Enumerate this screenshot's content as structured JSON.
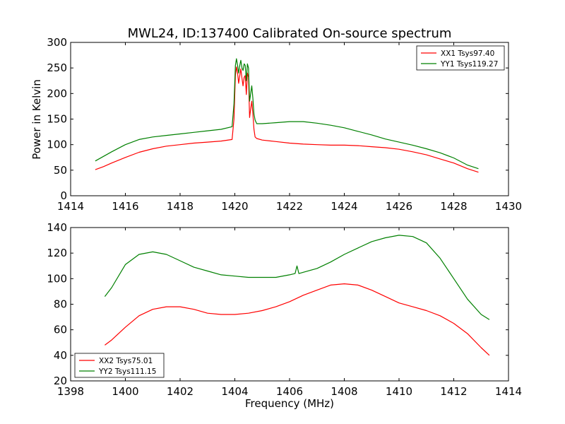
{
  "chart_data": [
    {
      "type": "line",
      "title": "MWL24, ID:137400 Calibrated On-source spectrum",
      "xlabel": "",
      "ylabel": "Power in Kelvin",
      "xlim": [
        1414,
        1430
      ],
      "ylim": [
        0,
        300
      ],
      "xticks": [
        1414,
        1416,
        1418,
        1420,
        1422,
        1424,
        1426,
        1428,
        1430
      ],
      "yticks": [
        0,
        50,
        100,
        150,
        200,
        250,
        300
      ],
      "grid": false,
      "legend_position": "top-right",
      "series": [
        {
          "name": "XX1 Tsys97.40",
          "color": "#ff0000",
          "x": [
            1414.9,
            1415.2,
            1415.5,
            1416.0,
            1416.5,
            1417.0,
            1417.5,
            1418.0,
            1418.5,
            1419.0,
            1419.5,
            1419.9,
            1419.97,
            1420.02,
            1420.06,
            1420.1,
            1420.14,
            1420.18,
            1420.22,
            1420.26,
            1420.3,
            1420.34,
            1420.38,
            1420.42,
            1420.46,
            1420.5,
            1420.54,
            1420.58,
            1420.62,
            1420.66,
            1420.7,
            1420.74,
            1420.8,
            1421.0,
            1421.5,
            1422.0,
            1422.5,
            1423.0,
            1423.5,
            1424.0,
            1424.5,
            1425.0,
            1425.5,
            1426.0,
            1426.5,
            1427.0,
            1427.5,
            1428.0,
            1428.5,
            1428.9
          ],
          "y": [
            51,
            57,
            64,
            75,
            85,
            92,
            97,
            100,
            103,
            105,
            107,
            110,
            150,
            235,
            252,
            240,
            220,
            235,
            248,
            230,
            215,
            232,
            235,
            198,
            240,
            232,
            153,
            170,
            185,
            160,
            130,
            115,
            112,
            109,
            106,
            103,
            101,
            100,
            99,
            99,
            98,
            96,
            94,
            91,
            86,
            80,
            72,
            64,
            53,
            46
          ]
        },
        {
          "name": "YY1 Tsys119.27",
          "color": "#008000",
          "x": [
            1414.9,
            1415.2,
            1415.5,
            1416.0,
            1416.5,
            1417.0,
            1417.5,
            1418.0,
            1418.5,
            1419.0,
            1419.5,
            1419.9,
            1419.97,
            1420.02,
            1420.06,
            1420.1,
            1420.14,
            1420.18,
            1420.22,
            1420.26,
            1420.3,
            1420.34,
            1420.38,
            1420.42,
            1420.46,
            1420.5,
            1420.54,
            1420.58,
            1420.62,
            1420.66,
            1420.7,
            1420.74,
            1420.8,
            1421.0,
            1421.5,
            1422.0,
            1422.5,
            1423.0,
            1423.5,
            1424.0,
            1424.5,
            1425.0,
            1425.5,
            1426.0,
            1426.5,
            1427.0,
            1427.5,
            1428.0,
            1428.5,
            1428.9
          ],
          "y": [
            68,
            77,
            86,
            100,
            110,
            115,
            118,
            121,
            124,
            127,
            130,
            135,
            180,
            255,
            268,
            255,
            240,
            255,
            265,
            250,
            245,
            258,
            255,
            225,
            258,
            250,
            185,
            200,
            215,
            190,
            160,
            148,
            141,
            141,
            143,
            145,
            145,
            142,
            138,
            133,
            126,
            119,
            111,
            105,
            99,
            92,
            84,
            74,
            60,
            53
          ]
        }
      ]
    },
    {
      "type": "line",
      "title": "",
      "xlabel": "Frequency (MHz)",
      "ylabel": "",
      "xlim": [
        1398,
        1414
      ],
      "ylim": [
        20,
        140
      ],
      "xticks": [
        1398,
        1400,
        1402,
        1404,
        1406,
        1408,
        1410,
        1412,
        1414
      ],
      "yticks": [
        20,
        40,
        60,
        80,
        100,
        120,
        140
      ],
      "grid": false,
      "legend_position": "bottom-left",
      "series": [
        {
          "name": "XX2 Tsys75.01",
          "color": "#ff0000",
          "x": [
            1399.25,
            1399.5,
            1400.0,
            1400.5,
            1401.0,
            1401.5,
            1402.0,
            1402.5,
            1403.0,
            1403.5,
            1404.0,
            1404.5,
            1405.0,
            1405.5,
            1406.0,
            1406.5,
            1407.0,
            1407.5,
            1408.0,
            1408.5,
            1409.0,
            1409.5,
            1410.0,
            1410.5,
            1411.0,
            1411.5,
            1412.0,
            1412.5,
            1413.0,
            1413.3
          ],
          "y": [
            48,
            52,
            62,
            71,
            76,
            78,
            78,
            76,
            73,
            72,
            72,
            73,
            75,
            78,
            82,
            87,
            91,
            95,
            96,
            95,
            91,
            86,
            81,
            78,
            75,
            71,
            65,
            57,
            46,
            40
          ]
        },
        {
          "name": "YY2 Tsys111.15",
          "color": "#008000",
          "x": [
            1399.25,
            1399.5,
            1400.0,
            1400.5,
            1401.0,
            1401.5,
            1402.0,
            1402.5,
            1403.0,
            1403.5,
            1404.0,
            1404.5,
            1405.0,
            1405.5,
            1406.0,
            1406.2,
            1406.27,
            1406.34,
            1406.5,
            1407.0,
            1407.5,
            1408.0,
            1408.5,
            1409.0,
            1409.5,
            1410.0,
            1410.5,
            1411.0,
            1411.5,
            1412.0,
            1412.5,
            1413.0,
            1413.3
          ],
          "y": [
            86,
            93,
            111,
            119,
            121,
            119,
            114,
            109,
            106,
            103,
            102,
            101,
            101,
            101,
            103,
            104,
            110,
            104,
            105,
            108,
            113,
            119,
            124,
            129,
            132,
            134,
            133,
            128,
            116,
            100,
            84,
            72,
            68
          ]
        }
      ]
    }
  ]
}
